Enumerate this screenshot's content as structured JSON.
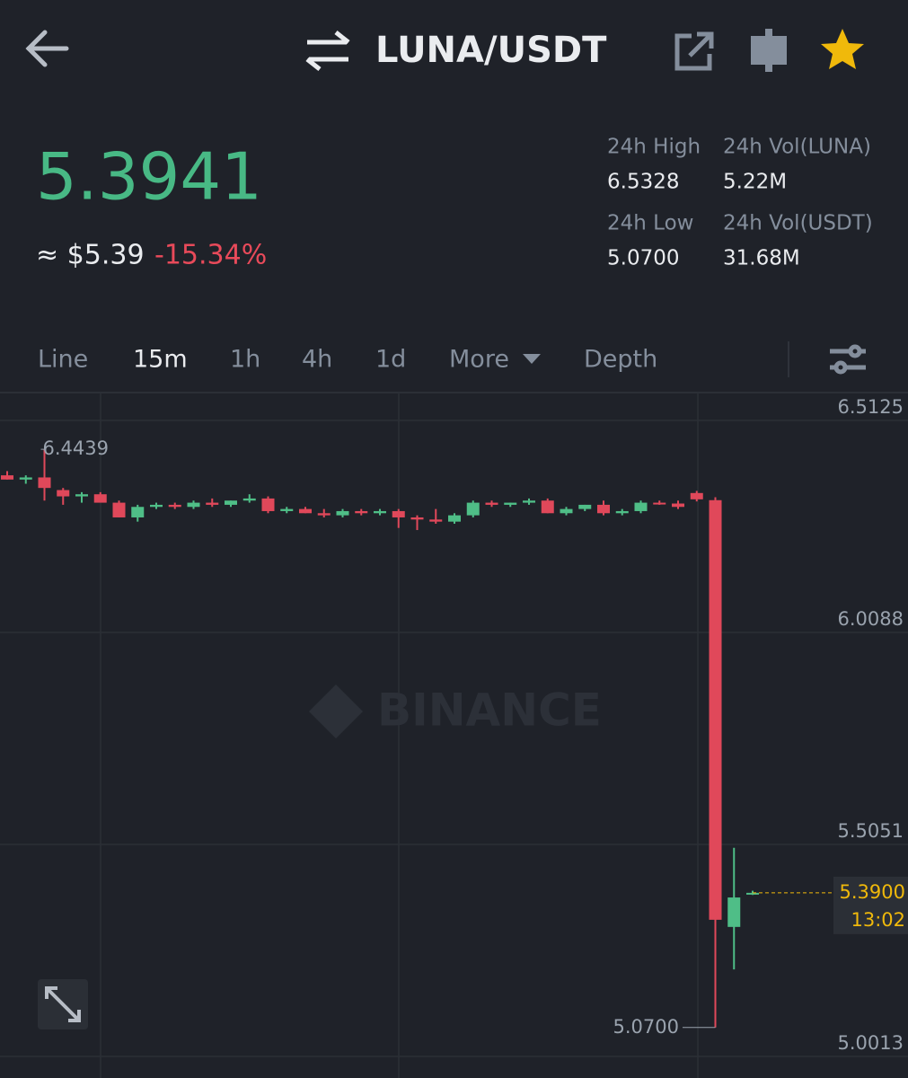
{
  "header": {
    "pair": "LUNA/USDT"
  },
  "ticker": {
    "last_price": "5.3941",
    "fiat_price": "≈ $5.39",
    "change": "-15.34%",
    "stats": [
      {
        "label": "24h High",
        "value": "6.5328"
      },
      {
        "label": "24h Vol(LUNA)",
        "value": "5.22M"
      },
      {
        "label": "24h Low",
        "value": "5.0700"
      },
      {
        "label": "24h Vol(USDT)",
        "value": "31.68M"
      }
    ]
  },
  "tabs": [
    "Line",
    "15m",
    "1h",
    "4h",
    "1d",
    "More",
    "Depth"
  ],
  "watermark": "BINANCE",
  "chart_data": {
    "type": "candlestick",
    "up_color": "#4fbe87",
    "down_color": "#e0485a",
    "grid": true,
    "open": [
      6.382,
      6.372,
      6.377,
      6.347,
      6.332,
      6.337,
      6.317,
      6.282,
      6.307,
      6.312,
      6.307,
      6.317,
      6.312,
      6.322,
      6.327,
      6.297,
      6.302,
      6.292,
      6.287,
      6.297,
      6.292,
      6.297,
      6.282,
      6.277,
      6.272,
      6.287,
      6.317,
      6.312,
      6.317,
      6.322,
      6.292,
      6.302,
      6.312,
      6.292,
      6.297,
      6.317,
      6.315,
      6.34,
      6.323,
      5.309,
      5.39
    ],
    "high": [
      6.392,
      6.382,
      6.4439,
      6.352,
      6.342,
      6.342,
      6.322,
      6.312,
      6.317,
      6.317,
      6.322,
      6.327,
      6.322,
      6.337,
      6.332,
      6.307,
      6.307,
      6.302,
      6.302,
      6.302,
      6.302,
      6.302,
      6.287,
      6.302,
      6.292,
      6.322,
      6.322,
      6.317,
      6.327,
      6.327,
      6.307,
      6.312,
      6.322,
      6.302,
      6.322,
      6.322,
      6.322,
      6.345,
      6.33,
      5.497,
      5.395
    ],
    "low": [
      6.372,
      6.362,
      6.322,
      6.312,
      6.317,
      6.322,
      6.282,
      6.272,
      6.302,
      6.302,
      6.302,
      6.307,
      6.307,
      6.317,
      6.292,
      6.292,
      6.292,
      6.282,
      6.282,
      6.287,
      6.287,
      6.257,
      6.252,
      6.267,
      6.267,
      6.282,
      6.307,
      6.307,
      6.312,
      6.292,
      6.287,
      6.297,
      6.287,
      6.287,
      6.292,
      6.312,
      6.302,
      6.32,
      5.07,
      5.208,
      5.385
    ],
    "close": [
      6.372,
      6.377,
      6.352,
      6.332,
      6.337,
      6.317,
      6.282,
      6.307,
      6.312,
      6.307,
      6.317,
      6.312,
      6.322,
      6.327,
      6.297,
      6.302,
      6.292,
      6.287,
      6.297,
      6.292,
      6.297,
      6.282,
      6.277,
      6.272,
      6.287,
      6.317,
      6.312,
      6.317,
      6.322,
      6.292,
      6.302,
      6.312,
      6.292,
      6.297,
      6.317,
      6.315,
      6.307,
      6.325,
      5.326,
      5.379,
      5.39
    ],
    "ylim": [
      4.9714,
      6.5765
    ],
    "yticks": [
      6.5125,
      6.0088,
      5.5051,
      5.0013
    ],
    "high_marker": 6.4439,
    "low_marker": {
      "value": 5.07,
      "label": "5.0700"
    },
    "last_price": {
      "value": 5.39,
      "label": "5.3900"
    },
    "countdown": "13:02"
  }
}
